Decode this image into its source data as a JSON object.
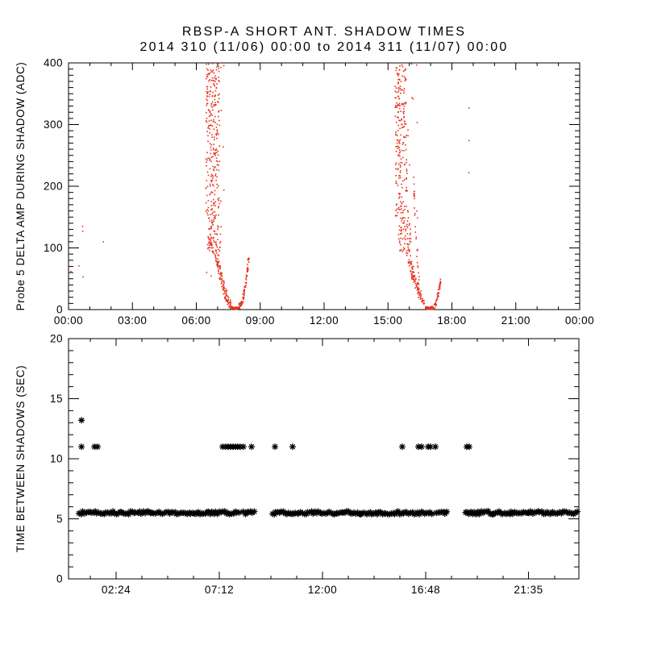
{
  "window": {
    "title_line1": "RBSP-A SHORT ANT. SHADOW TIMES",
    "title_line2": "2014 310 (11/06) 00:00 to 2014 311 (11/07) 00:00"
  },
  "colors": {
    "background": "#ffffff",
    "axis": "#000000",
    "point_red": "#e8301c",
    "marker_black": "#000000"
  },
  "chart_data": [
    {
      "type": "scatter",
      "panel": "delta-amp",
      "title": "RBSP-A SHORT ANT. SHADOW TIMES",
      "subtitle": "2014 310 (11/06) 00:00 to 2014 311 (11/07) 00:00",
      "xlabel": "",
      "ylabel": "Probe 5 DELTA AMP DURING SHADOW (ADC)",
      "ylim": [
        0,
        400
      ],
      "yticks": [
        0,
        100,
        200,
        300,
        400
      ],
      "y_minor_step": 10,
      "x_hours_lim": [
        0,
        24
      ],
      "xticks": [
        {
          "h": 0,
          "label": "00:00"
        },
        {
          "h": 3,
          "label": "03:00"
        },
        {
          "h": 6,
          "label": "06:00"
        },
        {
          "h": 9,
          "label": "09:00"
        },
        {
          "h": 12,
          "label": "12:00"
        },
        {
          "h": 15,
          "label": "15:00"
        },
        {
          "h": 18,
          "label": "18:00"
        },
        {
          "h": 21,
          "label": "21:00"
        },
        {
          "h": 24,
          "label": "00:00"
        }
      ],
      "x_minor_step": 1,
      "marker": "dot",
      "color": "#e8301c",
      "clusters": [
        {
          "kind": "scatter",
          "t": [
            6.45,
            7.1
          ],
          "v": [
            300,
            400
          ],
          "n": 110
        },
        {
          "kind": "scatter",
          "t": [
            6.45,
            7.1
          ],
          "v": [
            150,
            300
          ],
          "n": 130
        },
        {
          "kind": "scatter",
          "t": [
            6.5,
            7.15
          ],
          "v": [
            90,
            150
          ],
          "n": 80
        },
        {
          "kind": "curve",
          "pts": [
            [
              6.95,
              90
            ],
            [
              7.1,
              60
            ],
            [
              7.25,
              40
            ],
            [
              7.42,
              22
            ],
            [
              7.58,
              8
            ]
          ],
          "jt": 0.09,
          "jv": 5,
          "n": 110
        },
        {
          "kind": "curve",
          "pts": [
            [
              7.62,
              4
            ],
            [
              7.8,
              1
            ],
            [
              7.95,
              2
            ]
          ],
          "jt": 0.05,
          "jv": 2.5,
          "n": 60
        },
        {
          "kind": "curve",
          "pts": [
            [
              8.02,
              4
            ],
            [
              8.15,
              12
            ],
            [
              8.27,
              30
            ],
            [
              8.38,
              55
            ],
            [
              8.45,
              88
            ]
          ],
          "jt": 0.035,
          "jv": 5,
          "n": 70
        },
        {
          "kind": "scatter",
          "t": [
            6.4,
            7.3
          ],
          "v": [
            40,
            400
          ],
          "n": 25
        },
        {
          "kind": "scatter",
          "t": [
            15.32,
            15.85
          ],
          "v": [
            300,
            400
          ],
          "n": 95
        },
        {
          "kind": "scatter",
          "t": [
            15.35,
            15.95
          ],
          "v": [
            150,
            300
          ],
          "n": 110
        },
        {
          "kind": "scatter",
          "t": [
            15.5,
            16.1
          ],
          "v": [
            90,
            150
          ],
          "n": 65
        },
        {
          "kind": "curve",
          "pts": [
            [
              15.95,
              90
            ],
            [
              16.15,
              60
            ],
            [
              16.35,
              38
            ],
            [
              16.55,
              20
            ],
            [
              16.72,
              8
            ]
          ],
          "jt": 0.09,
          "jv": 5,
          "n": 100
        },
        {
          "kind": "curve",
          "pts": [
            [
              16.78,
              4
            ],
            [
              16.95,
              1
            ],
            [
              17.12,
              3
            ]
          ],
          "jt": 0.05,
          "jv": 2.5,
          "n": 55
        },
        {
          "kind": "curve",
          "pts": [
            [
              17.18,
              5
            ],
            [
              17.3,
              15
            ],
            [
              17.4,
              32
            ],
            [
              17.47,
              50
            ]
          ],
          "jt": 0.03,
          "jv": 4,
          "n": 55
        },
        {
          "kind": "curve",
          "pts": [
            [
              16.2,
              210
            ],
            [
              16.32,
              120
            ],
            [
              16.42,
              60
            ],
            [
              16.5,
              30
            ]
          ],
          "jt": 0.03,
          "jv": 8,
          "n": 28
        },
        {
          "kind": "scatter",
          "t": [
            15.3,
            16.45
          ],
          "v": [
            30,
            400
          ],
          "n": 22
        }
      ],
      "outlier_points": [
        [
          0.11,
          62
        ],
        [
          0.49,
          71
        ],
        [
          0.66,
          135
        ],
        [
          0.67,
          127
        ],
        [
          0.68,
          53
        ],
        [
          1.63,
          110
        ],
        [
          18.81,
          327
        ],
        [
          18.81,
          274
        ],
        [
          18.8,
          222
        ]
      ]
    },
    {
      "type": "scatter",
      "panel": "time-between-shadows",
      "xlabel": "",
      "ylabel": "TIME BETWEEN SHADOWS (SEC)",
      "ylim": [
        0,
        20
      ],
      "yticks": [
        0,
        5,
        10,
        15,
        20
      ],
      "y_minor_step": 1,
      "x_hours_lim": [
        0.19,
        23.92
      ],
      "xticks": [
        {
          "h": 2.4,
          "label": "02:24"
        },
        {
          "h": 7.2,
          "label": "07:12"
        },
        {
          "h": 12.0,
          "label": "12:00"
        },
        {
          "h": 16.8,
          "label": "16:48"
        },
        {
          "h": 21.58,
          "label": "21:35"
        }
      ],
      "x_minor_step": 1.2,
      "marker": "asterisk",
      "color": "#000000",
      "band": {
        "value": 5.5,
        "jitter": 0.12,
        "segments_hours": [
          [
            0.68,
            8.17
          ],
          [
            8.32,
            8.89
          ],
          [
            9.67,
            17.17
          ],
          [
            17.29,
            17.81
          ],
          [
            18.64,
            23.92
          ]
        ]
      },
      "upper_points": {
        "value": 11.0,
        "hours": [
          0.79,
          1.39,
          1.54,
          7.35,
          7.5,
          7.61,
          7.72,
          7.84,
          7.95,
          8.06,
          8.17,
          8.32,
          8.7,
          9.79,
          10.61,
          15.71,
          16.46,
          16.61,
          16.91,
          17.02,
          17.25,
          18.71,
          18.82
        ]
      },
      "single_point": {
        "value": 13.2,
        "hours": [
          0.79
        ]
      }
    }
  ]
}
